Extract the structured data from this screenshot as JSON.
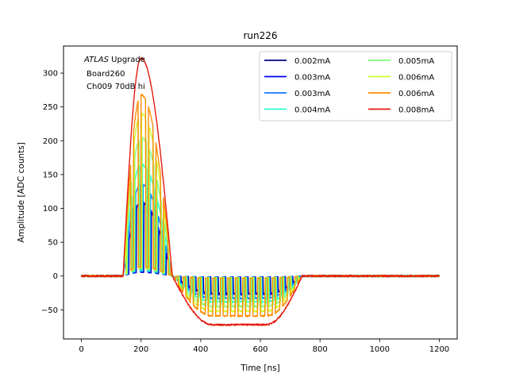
{
  "chart_data": {
    "type": "line",
    "title": "run226",
    "xlabel": "Time [ns]",
    "ylabel": "Amplitude [ADC counts]",
    "xlim": [
      -60,
      1260
    ],
    "ylim": [
      -93,
      340
    ],
    "xticks": [
      0,
      200,
      400,
      600,
      800,
      1000,
      1200
    ],
    "yticks": [
      -50,
      0,
      50,
      100,
      150,
      200,
      250,
      300
    ],
    "grid": false,
    "legend_position": "top-right",
    "legend_columns": 2,
    "annotation": {
      "line1_italic": "ATLAS",
      "line1_rest": " Upgrade",
      "line2": "Board260",
      "line3": "Ch009 70dB hi"
    },
    "series": [
      {
        "name": "0.002mA",
        "color": "#00007f",
        "peak": 108,
        "undershoot": -26,
        "comb": true
      },
      {
        "name": "0.003mA",
        "color": "#0000f1",
        "peak": 110,
        "undershoot": -27,
        "comb": true
      },
      {
        "name": "0.003mA",
        "color": "#0c7aff",
        "peak": 136,
        "undershoot": -33,
        "comb": true
      },
      {
        "name": "0.004mA",
        "color": "#29ffce",
        "peak": 165,
        "undershoot": -38,
        "comb": true
      },
      {
        "name": "0.005mA",
        "color": "#7dff7a",
        "peak": 205,
        "undershoot": -45,
        "comb": true
      },
      {
        "name": "0.006mA",
        "color": "#ceff29",
        "peak": 240,
        "undershoot": -52,
        "comb": true
      },
      {
        "name": "0.006mA",
        "color": "#ff8c00",
        "peak": 268,
        "undershoot": -59,
        "comb": true
      },
      {
        "name": "0.008mA",
        "color": "#e41a0f",
        "peak": 322,
        "undershoot": -72,
        "comb": false
      }
    ]
  }
}
